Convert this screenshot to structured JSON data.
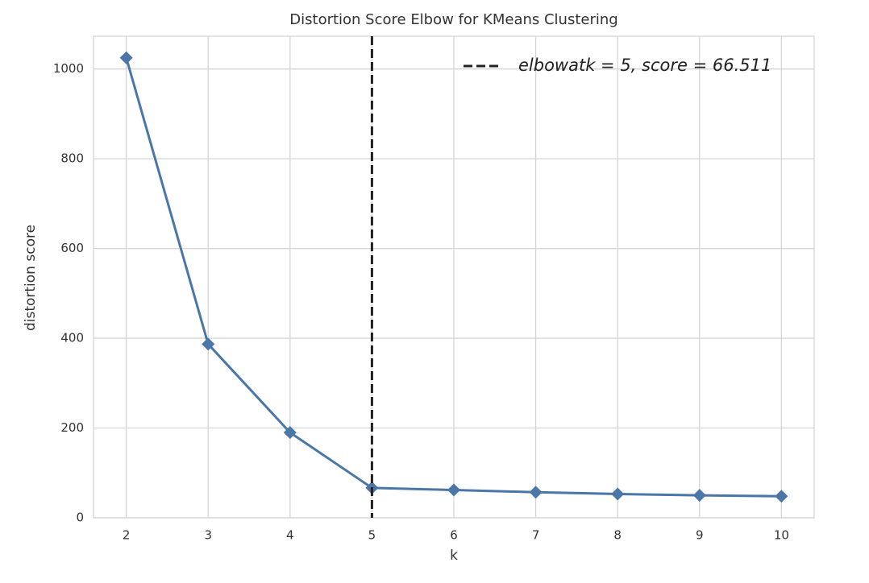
{
  "chart_data": {
    "type": "line",
    "title": "Distortion Score Elbow for KMeans Clustering",
    "x_label": "k",
    "y_label": "distortion score",
    "x": [
      2,
      3,
      4,
      5,
      6,
      7,
      8,
      9,
      10
    ],
    "values": [
      1025,
      387,
      190,
      66.511,
      62,
      57,
      53,
      50,
      48
    ],
    "color": "#4a76a8",
    "xlim": [
      1.6,
      10.4
    ],
    "xticks": [
      2,
      3,
      4,
      5,
      6,
      7,
      8,
      9,
      10
    ],
    "ylim": [
      0,
      1073
    ],
    "yticks": [
      0,
      200,
      400,
      600,
      800,
      1000
    ],
    "grid": true,
    "elbow_x": 5,
    "elbow_color": "#222222",
    "legend_text": "elbowatk = 5, score = 66.511",
    "legend_position": "upper right"
  }
}
